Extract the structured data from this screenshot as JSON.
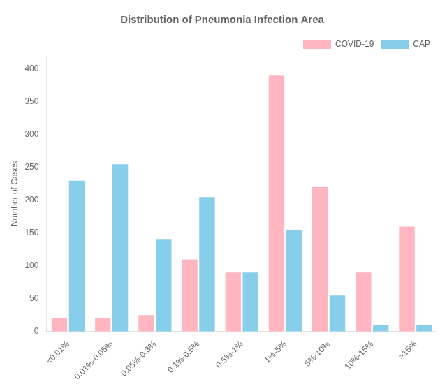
{
  "chart_data": {
    "type": "bar",
    "title": "Distribution of Pneumonia Infection Area",
    "ylabel": "Number of Cases",
    "categories": [
      "<0.01%",
      "0.01%-0.05%",
      "0.05%-0.3%",
      "0.1%-0.5%",
      "0.5%-1%",
      "1%-5%",
      "5%-10%",
      "10%-15%",
      ">15%"
    ],
    "series": [
      {
        "name": "COVID-19",
        "color": "#FFB6C1",
        "values": [
          20,
          20,
          25,
          110,
          90,
          390,
          220,
          90,
          160
        ]
      },
      {
        "name": "CAP",
        "color": "#87CEEB",
        "values": [
          230,
          255,
          140,
          205,
          90,
          155,
          55,
          10,
          10
        ]
      }
    ],
    "ylim": [
      0,
      420
    ],
    "yticks": [
      0,
      50,
      100,
      150,
      200,
      250,
      300,
      350,
      400
    ],
    "grid": false,
    "legend": "upper right"
  }
}
